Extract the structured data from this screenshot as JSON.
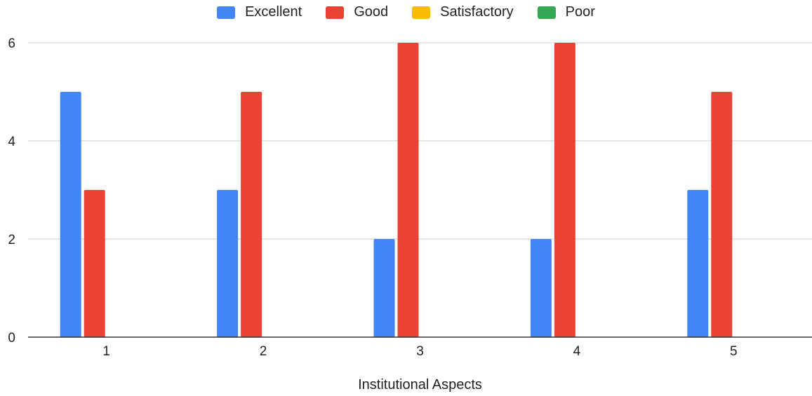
{
  "chart_data": {
    "type": "bar",
    "categories": [
      "1",
      "2",
      "3",
      "4",
      "5"
    ],
    "series": [
      {
        "name": "Excellent",
        "color": "#4285F4",
        "values": [
          5,
          3,
          2,
          2,
          3
        ]
      },
      {
        "name": "Good",
        "color": "#EA4335",
        "values": [
          3,
          5,
          6,
          6,
          5
        ]
      },
      {
        "name": "Satisfactory",
        "color": "#FBBC04",
        "values": [
          0,
          0,
          0,
          0,
          0
        ]
      },
      {
        "name": "Poor",
        "color": "#34A853",
        "values": [
          0,
          0,
          0,
          0,
          0
        ]
      }
    ],
    "xlabel": "Institutional Aspects",
    "ylabel": "",
    "ylim": [
      0,
      6
    ],
    "yticks": [
      0,
      2,
      4,
      6
    ],
    "grid": true,
    "legend_position": "top"
  }
}
